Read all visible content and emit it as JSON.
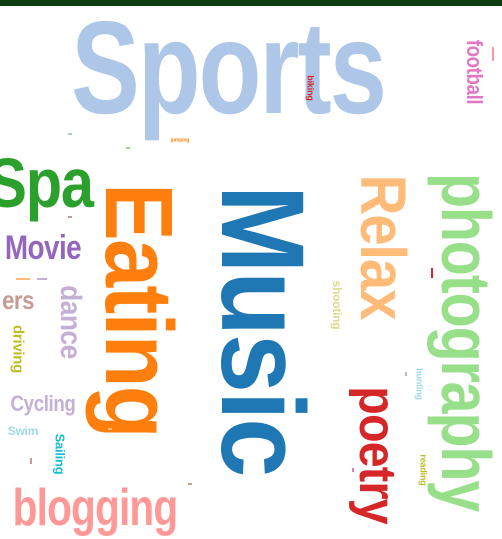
{
  "words": {
    "sports": "Sports",
    "music": "Music",
    "eating": "Eating",
    "photography": "photography",
    "relax": "Relax",
    "poetry": "poetry",
    "spa": "Spa",
    "movie": "Movie",
    "blogging": "blogging",
    "dance": "dance",
    "cycling": "Cycling",
    "football": "football",
    "driving": "driving",
    "swim": "Swim",
    "sailing": "Sailing",
    "shooting": "shooting",
    "reading": "reading",
    "hunting": "hunting",
    "biking": "biking",
    "jumping": "jumping",
    "ers": "ers"
  },
  "colors": {
    "light_blue": "#aec7e8",
    "blue": "#1f77b4",
    "orange": "#ff7f0e",
    "light_orange": "#ffbb78",
    "green": "#2ca02c",
    "light_green": "#98df8a",
    "red": "#d62728",
    "pink": "#ff9896",
    "purple": "#9467bd",
    "lavender": "#c5b0d5",
    "magenta": "#e377c2",
    "brown": "#c49c94",
    "olive": "#bcbd22",
    "khaki": "#dbdb8d",
    "cyan": "#17becf",
    "light_cyan": "#9edae5"
  }
}
